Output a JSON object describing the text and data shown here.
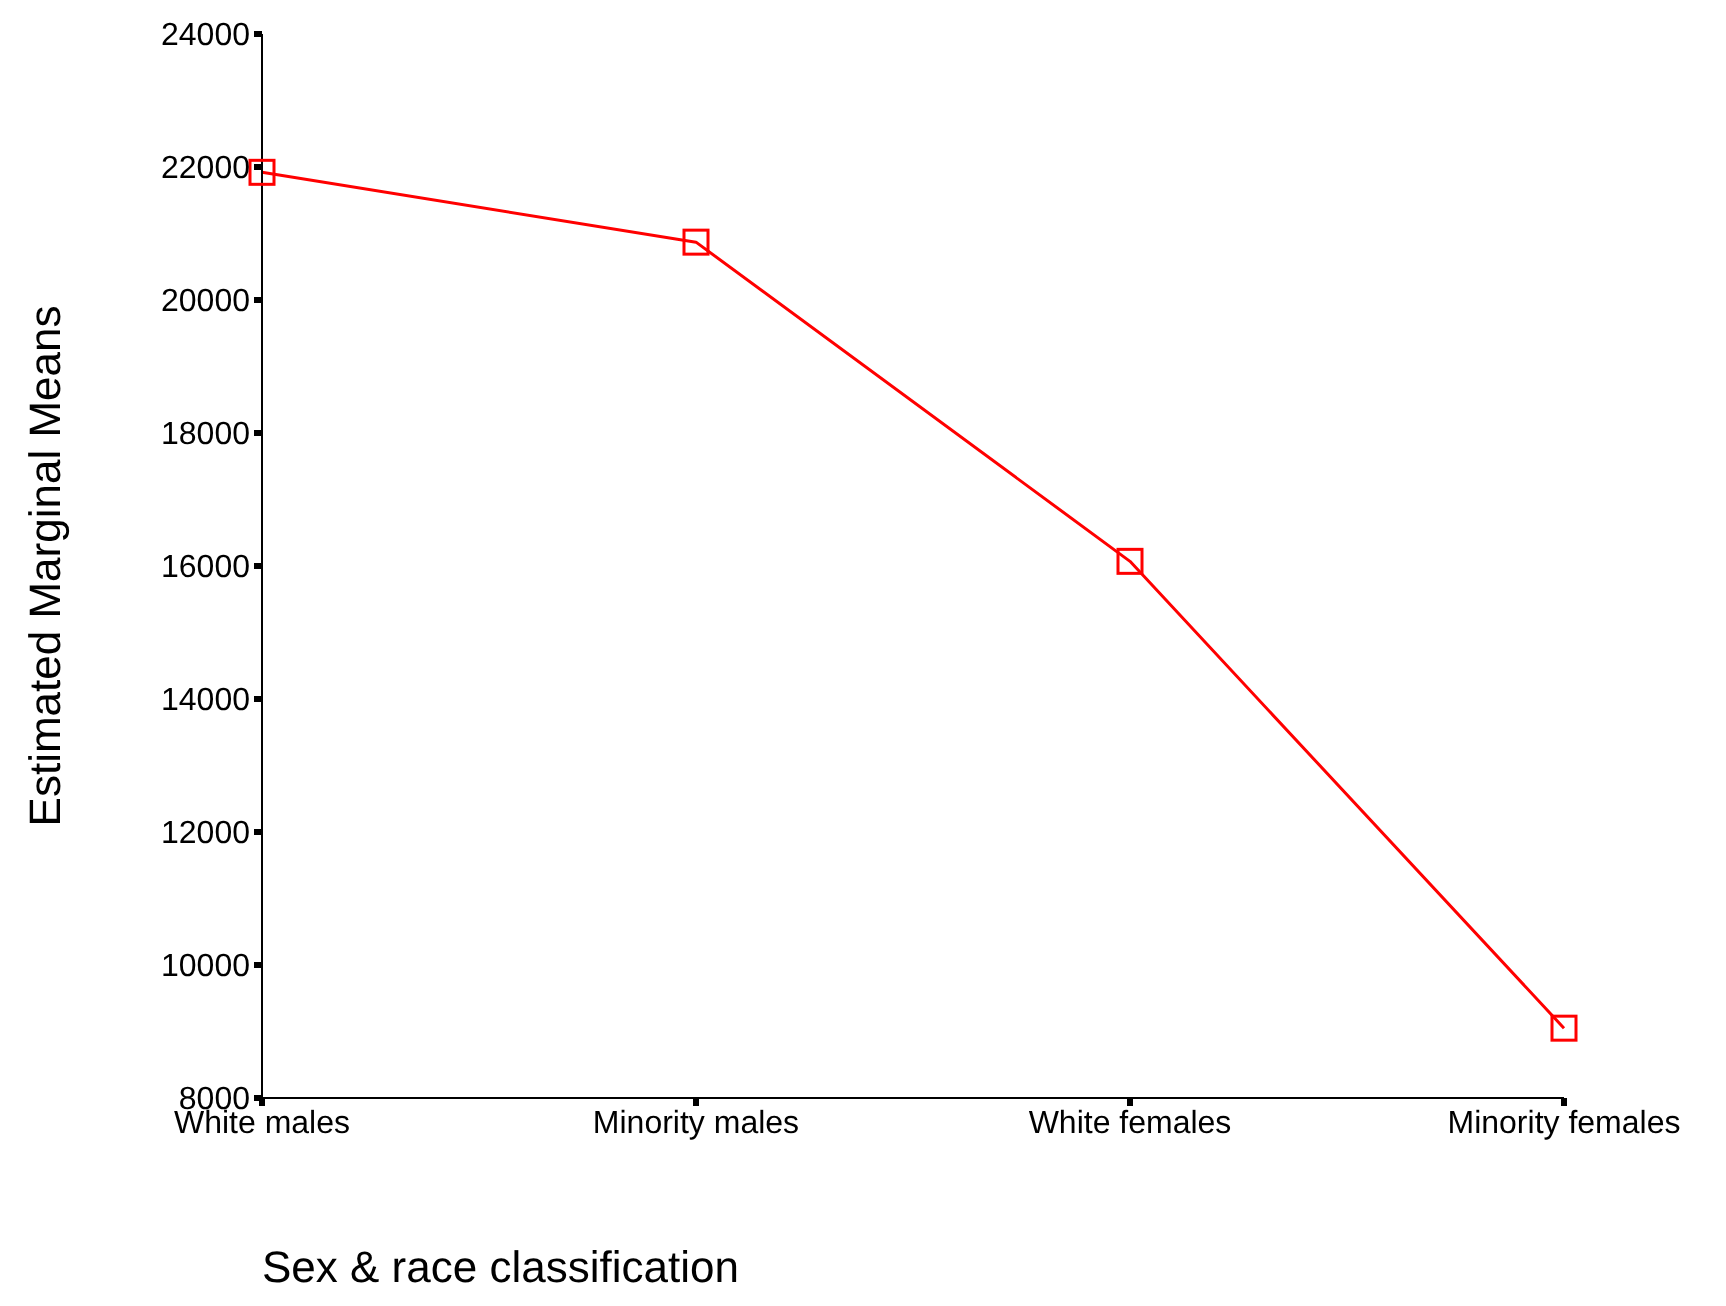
{
  "chart_data": {
    "type": "line",
    "xlabel": "Sex & race classification",
    "ylabel": "Estimated Marginal Means",
    "categories": [
      "White males",
      "Minority males",
      "White females",
      "Minority females"
    ],
    "series": [
      {
        "color": "#ff0000",
        "values": [
          21920,
          20870,
          16070,
          9050
        ]
      }
    ],
    "ylim": [
      8000,
      24000
    ],
    "yticks": [
      8000,
      10000,
      12000,
      14000,
      16000,
      18000,
      20000,
      22000,
      24000
    ],
    "marker": "square",
    "line_style": "solid"
  }
}
